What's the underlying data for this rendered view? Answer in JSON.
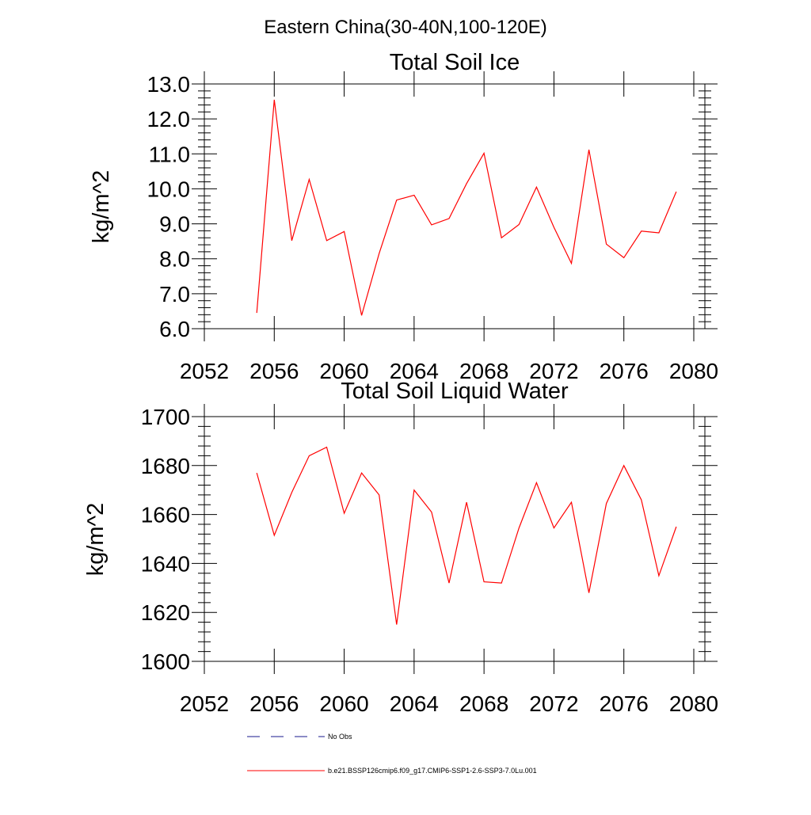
{
  "figure": {
    "suptitle": "Eastern China(30-40N,100-120E)"
  },
  "legend": {
    "entries": [
      {
        "label": "No Obs",
        "color": "#1a1a8c",
        "dash": true
      },
      {
        "label": "b.e21.BSSP126cmip6.f09_g17.CMIP6-SSP1-2.6-SSP3-7.0Lu.001",
        "color": "#ff0000",
        "dash": false
      }
    ]
  },
  "chart_data": [
    {
      "type": "line",
      "title": "Total Soil Ice",
      "xlabel": "",
      "ylabel": "kg/m^2",
      "xlim": [
        2052,
        2080
      ],
      "ylim": [
        6.0,
        13.0
      ],
      "xticks": [
        2052,
        2056,
        2060,
        2064,
        2068,
        2072,
        2076,
        2080
      ],
      "xtick_labels": [
        "2052",
        "2056",
        "2060",
        "2064",
        "2068",
        "2072",
        "2076",
        "2080"
      ],
      "yticks": [
        6.0,
        7.0,
        8.0,
        9.0,
        10.0,
        11.0,
        12.0,
        13.0
      ],
      "ytick_labels": [
        "6.0",
        "7.0",
        "8.0",
        "9.0",
        "10.0",
        "11.0",
        "12.0",
        "13.0"
      ],
      "grid": false,
      "series": [
        {
          "name": "b.e21.BSSP126cmip6.f09_g17.CMIP6-SSP1-2.6-SSP3-7.0Lu.001",
          "color": "#ff0000",
          "x": [
            2055,
            2056,
            2057,
            2058,
            2059,
            2060,
            2061,
            2062,
            2063,
            2064,
            2065,
            2066,
            2067,
            2068,
            2069,
            2070,
            2071,
            2072,
            2073,
            2074,
            2075,
            2076,
            2077,
            2078,
            2079
          ],
          "y": [
            6.45,
            12.55,
            8.52,
            10.27,
            8.52,
            8.78,
            6.38,
            8.15,
            9.68,
            9.82,
            8.97,
            9.15,
            10.15,
            11.02,
            8.6,
            8.98,
            10.05,
            8.9,
            7.87,
            11.12,
            8.42,
            8.03,
            8.79,
            8.74,
            9.92
          ]
        }
      ]
    },
    {
      "type": "line",
      "title": "Total Soil Liquid Water",
      "xlabel": "",
      "ylabel": "kg/m^2",
      "xlim": [
        2052,
        2080
      ],
      "ylim": [
        1600,
        1700
      ],
      "xticks": [
        2052,
        2056,
        2060,
        2064,
        2068,
        2072,
        2076,
        2080
      ],
      "xtick_labels": [
        "2052",
        "2056",
        "2060",
        "2064",
        "2068",
        "2072",
        "2076",
        "2080"
      ],
      "yticks": [
        1600,
        1620,
        1640,
        1660,
        1680,
        1700
      ],
      "ytick_labels": [
        "1600",
        "1620",
        "1640",
        "1660",
        "1680",
        "1700"
      ],
      "grid": false,
      "series": [
        {
          "name": "b.e21.BSSP126cmip6.f09_g17.CMIP6-SSP1-2.6-SSP3-7.0Lu.001",
          "color": "#ff0000",
          "x": [
            2055,
            2056,
            2057,
            2058,
            2059,
            2060,
            2061,
            2062,
            2063,
            2064,
            2065,
            2066,
            2067,
            2068,
            2069,
            2070,
            2071,
            2072,
            2073,
            2074,
            2075,
            2076,
            2077,
            2078,
            2079
          ],
          "y": [
            1677,
            1651.5,
            1669,
            1684,
            1687.5,
            1660.5,
            1677,
            1668,
            1615,
            1670,
            1661,
            1632,
            1665,
            1632.5,
            1632,
            1654.5,
            1673,
            1654.5,
            1665,
            1628,
            1664.5,
            1680,
            1666,
            1635,
            1655
          ]
        }
      ]
    }
  ]
}
